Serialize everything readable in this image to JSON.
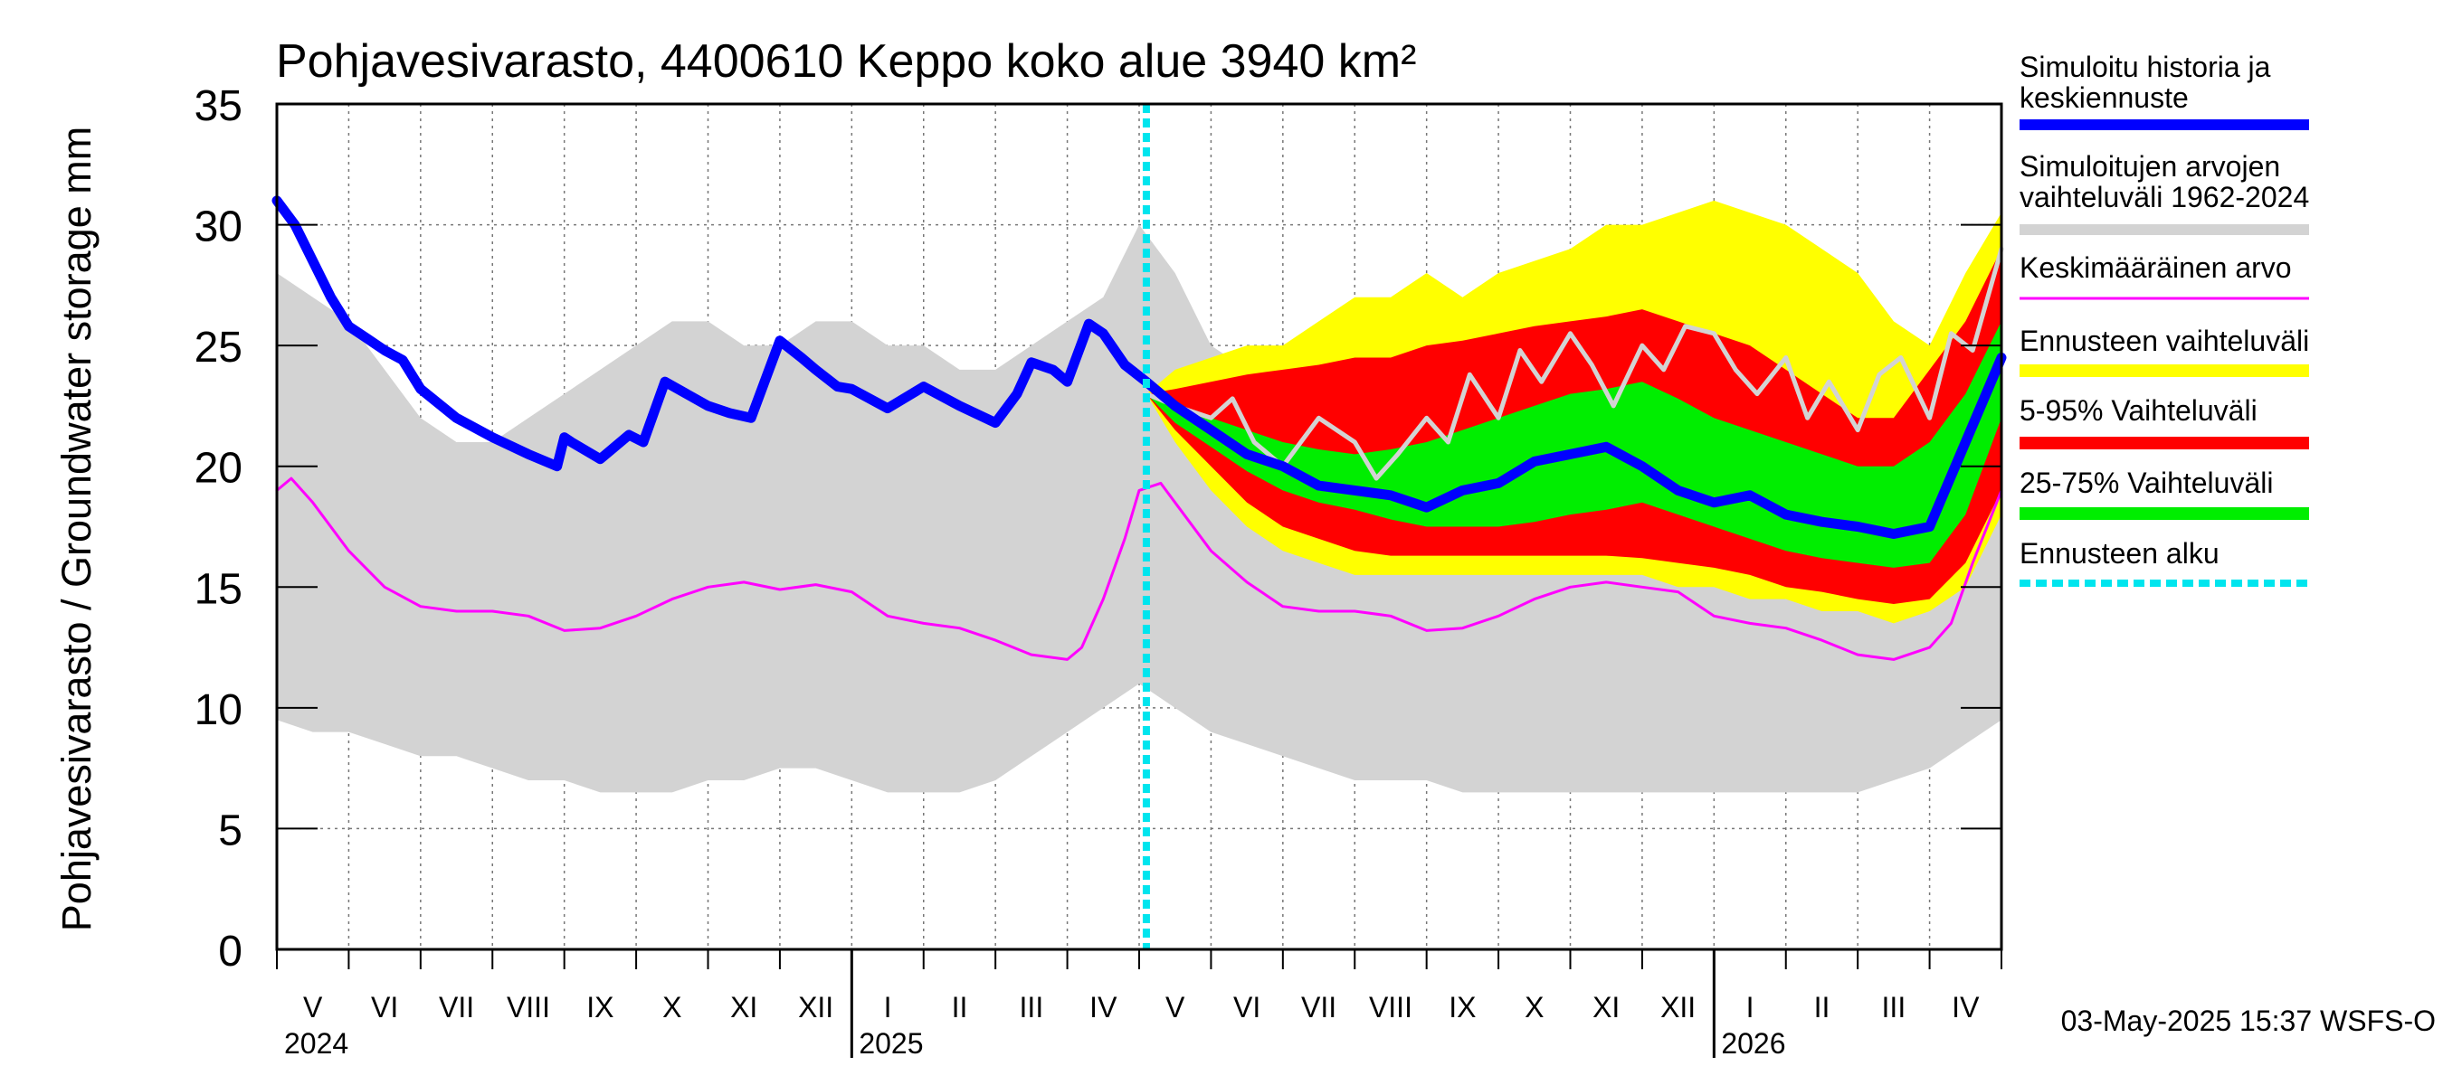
{
  "chart_data": {
    "type": "area",
    "title": "Pohjavesivarasto, 4400610 Keppo koko alue 3940 km²",
    "ylabel": "Pohjavesivarasto / Groundwater storage   mm",
    "ylim": [
      0,
      35
    ],
    "yticks": [
      "0",
      "5",
      "10",
      "15",
      "20",
      "25",
      "30",
      "35"
    ],
    "grid": true,
    "x_unit": "months since 1 May 2024",
    "xlim": [
      0,
      24
    ],
    "forecast_start": 12.1,
    "month_labels": [
      "V",
      "VI",
      "VII",
      "VIII",
      "IX",
      "X",
      "XI",
      "XII",
      "I",
      "II",
      "III",
      "IV",
      "V",
      "VI",
      "VII",
      "VIII",
      "IX",
      "X",
      "XI",
      "XII",
      "I",
      "II",
      "III",
      "IV"
    ],
    "year_labels": [
      {
        "label": "2024",
        "month": 0
      },
      {
        "label": "2025",
        "month": 8
      },
      {
        "label": "2026",
        "month": 20
      }
    ],
    "timestamp": "03-May-2025 15:37 WSFS-O",
    "legend_position": "right",
    "legend": [
      {
        "label": "Simuloitu historia ja keskiennuste",
        "color": "#0000ff"
      },
      {
        "label": "Simuloitujen arvojen vaihteluväli 1962-2024",
        "color": "#d3d3d3"
      },
      {
        "label": "Keskimääräinen arvo",
        "color": "#ff00ff"
      },
      {
        "label": "Ennusteen vaihteluväli",
        "color": "#ffff00"
      },
      {
        "label": "5-95% Vaihteluväli",
        "color": "#ff0000"
      },
      {
        "label": "25-75% Vaihteluväli",
        "color": "#00ee00"
      },
      {
        "label": "Ennusteen alku",
        "color": "#00e5ee"
      }
    ],
    "series": {
      "historical_range": {
        "x": [
          0,
          0.5,
          1,
          1.5,
          2,
          2.5,
          3,
          3.5,
          4,
          4.5,
          5,
          5.5,
          6,
          6.5,
          7,
          7.5,
          8,
          8.5,
          9,
          9.5,
          10,
          10.5,
          11,
          11.5,
          12,
          12.5,
          13,
          13.5,
          14,
          14.5,
          15,
          15.5,
          16,
          16.5,
          17,
          17.5,
          18,
          18.5,
          19,
          19.5,
          20,
          20.5,
          21,
          21.5,
          22,
          22.5,
          23,
          23.5,
          24
        ],
        "upper": [
          28,
          27,
          26,
          24,
          22,
          21,
          21,
          22,
          23,
          24,
          25,
          26,
          26,
          25,
          25,
          26,
          26,
          25,
          25,
          24,
          24,
          25,
          26,
          27,
          30,
          28,
          25,
          24,
          24,
          25,
          25,
          25,
          25,
          25,
          25,
          26,
          26,
          27,
          27,
          26,
          25,
          24,
          23,
          22,
          22,
          23,
          25,
          27,
          28
        ],
        "lower": [
          9.5,
          9,
          9,
          8.5,
          8,
          8,
          7.5,
          7,
          7,
          6.5,
          6.5,
          6.5,
          7,
          7,
          7.5,
          7.5,
          7,
          6.5,
          6.5,
          6.5,
          7,
          8,
          9,
          10,
          11,
          10,
          9,
          8.5,
          8,
          7.5,
          7,
          7,
          7,
          6.5,
          6.5,
          6.5,
          6.5,
          6.5,
          6.5,
          6.5,
          6.5,
          6.5,
          6.5,
          6.5,
          6.5,
          7,
          7.5,
          8.5,
          9.5
        ]
      },
      "forecast_full_range": {
        "x": [
          12.1,
          12.5,
          13,
          13.5,
          14,
          14.5,
          15,
          15.5,
          16,
          16.5,
          17,
          17.5,
          18,
          18.5,
          19,
          19.5,
          20,
          20.5,
          21,
          21.5,
          22,
          22.5,
          23,
          23.5,
          24
        ],
        "upper": [
          23,
          24,
          24.5,
          25,
          25,
          26,
          27,
          27,
          28,
          27,
          28,
          28.5,
          29,
          30,
          30,
          30.5,
          31,
          30.5,
          30,
          29,
          28,
          26,
          25,
          28,
          30.5
        ],
        "lower": [
          23,
          21,
          19,
          17.5,
          16.5,
          16,
          15.5,
          15.5,
          15.5,
          15.5,
          15.5,
          15.5,
          15.5,
          15.5,
          15.5,
          15,
          15,
          14.5,
          14.5,
          14,
          14,
          13.5,
          14,
          15,
          18
        ]
      },
      "forecast_p5_p95": {
        "x": [
          12.1,
          12.5,
          13,
          13.5,
          14,
          14.5,
          15,
          15.5,
          16,
          16.5,
          17,
          17.5,
          18,
          18.5,
          19,
          19.5,
          20,
          20.5,
          21,
          21.5,
          22,
          22.5,
          23,
          23.5,
          24
        ],
        "upper": [
          23,
          23.2,
          23.5,
          23.8,
          24,
          24.2,
          24.5,
          24.5,
          25,
          25.2,
          25.5,
          25.8,
          26,
          26.2,
          26.5,
          26,
          25.5,
          25,
          24,
          23,
          22,
          22,
          24,
          26,
          29
        ],
        "lower": [
          23,
          21.5,
          20,
          18.5,
          17.5,
          17,
          16.5,
          16.3,
          16.3,
          16.3,
          16.3,
          16.3,
          16.3,
          16.3,
          16.2,
          16,
          15.8,
          15.5,
          15,
          14.8,
          14.5,
          14.3,
          14.5,
          16,
          19
        ]
      },
      "forecast_p25_p75": {
        "x": [
          12.1,
          12.5,
          13,
          13.5,
          14,
          14.5,
          15,
          15.5,
          16,
          16.5,
          17,
          17.5,
          18,
          18.5,
          19,
          19.5,
          20,
          20.5,
          21,
          21.5,
          22,
          22.5,
          23,
          23.5,
          24
        ],
        "upper": [
          23,
          22.5,
          22,
          21.5,
          21,
          20.7,
          20.5,
          20.7,
          21,
          21.5,
          22,
          22.5,
          23,
          23.2,
          23.5,
          22.8,
          22,
          21.5,
          21,
          20.5,
          20,
          20,
          21,
          23,
          26
        ],
        "lower": [
          23,
          21.8,
          20.8,
          19.8,
          19,
          18.5,
          18.2,
          17.8,
          17.5,
          17.5,
          17.5,
          17.7,
          18,
          18.2,
          18.5,
          18,
          17.5,
          17,
          16.5,
          16.2,
          16,
          15.8,
          16,
          18,
          22
        ]
      },
      "simulated_mean_forecast": {
        "x": [
          0,
          0.25,
          0.5,
          0.75,
          1,
          1.25,
          1.5,
          1.75,
          2,
          2.5,
          3,
          3.5,
          3.9,
          4,
          4.1,
          4.5,
          4.9,
          5.1,
          5.4,
          5.7,
          6,
          6.3,
          6.6,
          6.8,
          7,
          7.3,
          7.5,
          7.8,
          8,
          8.5,
          9,
          9.5,
          10,
          10.3,
          10.5,
          10.8,
          11,
          11.3,
          11.5,
          11.8,
          12.1,
          12.5,
          13,
          13.5,
          14,
          14.5,
          15,
          15.5,
          16,
          16.5,
          17,
          17.5,
          18,
          18.5,
          19,
          19.5,
          20,
          20.5,
          21,
          21.5,
          22,
          22.5,
          23,
          23.5,
          24
        ],
        "y": [
          31,
          30,
          28.5,
          27,
          25.8,
          25.3,
          24.8,
          24.4,
          23.2,
          22,
          21.2,
          20.5,
          20,
          21.2,
          21,
          20.3,
          21.3,
          21,
          23.5,
          23,
          22.5,
          22.2,
          22,
          23.6,
          25.2,
          24.5,
          24,
          23.3,
          23.2,
          22.4,
          23.3,
          22.5,
          21.8,
          23,
          24.3,
          24,
          23.5,
          25.9,
          25.5,
          24.2,
          23.5,
          22.5,
          21.5,
          20.5,
          20,
          19.2,
          19,
          18.8,
          18.3,
          19,
          19.3,
          20.2,
          20.5,
          20.8,
          20,
          19,
          18.5,
          18.8,
          18,
          17.7,
          17.5,
          17.2,
          17.5,
          21,
          24.5
        ]
      },
      "long_term_mean": {
        "x": [
          0,
          0.2,
          0.5,
          1,
          1.5,
          2,
          2.5,
          3,
          3.5,
          4,
          4.5,
          5,
          5.5,
          6,
          6.5,
          7,
          7.5,
          8,
          8.5,
          9,
          9.5,
          10,
          10.5,
          11,
          11.2,
          11.5,
          11.8,
          12,
          12.3,
          12.5,
          13,
          13.5,
          14,
          14.5,
          15,
          15.5,
          16,
          16.5,
          17,
          17.5,
          18,
          18.5,
          19,
          19.5,
          20,
          20.5,
          21,
          21.5,
          22,
          22.5,
          23,
          23.3,
          23.6,
          24
        ],
        "y": [
          19,
          19.5,
          18.5,
          16.5,
          15,
          14.2,
          14,
          14,
          13.8,
          13.2,
          13.3,
          13.8,
          14.5,
          15,
          15.2,
          14.9,
          15.1,
          14.8,
          13.8,
          13.5,
          13.3,
          12.8,
          12.2,
          12,
          12.5,
          14.5,
          17,
          19,
          19.3,
          18.5,
          16.5,
          15.2,
          14.2,
          14,
          14,
          13.8,
          13.2,
          13.3,
          13.8,
          14.5,
          15,
          15.2,
          15,
          14.8,
          13.8,
          13.5,
          13.3,
          12.8,
          12.2,
          12,
          12.5,
          13.5,
          16,
          19
        ]
      },
      "forecast_median_trace": {
        "x": [
          12.1,
          12.5,
          13,
          13.3,
          13.6,
          14,
          14.5,
          15,
          15.3,
          15.6,
          16,
          16.3,
          16.6,
          17,
          17.3,
          17.6,
          18,
          18.3,
          18.6,
          19,
          19.3,
          19.6,
          20,
          20.3,
          20.6,
          21,
          21.3,
          21.6,
          22,
          22.3,
          22.6,
          23,
          23.3,
          23.6,
          24
        ],
        "y": [
          23,
          22.5,
          22,
          22.8,
          21,
          20,
          22,
          21,
          19.5,
          20.5,
          22,
          21,
          23.8,
          22,
          24.8,
          23.5,
          25.5,
          24.2,
          22.5,
          25,
          24,
          25.8,
          25.5,
          24,
          23,
          24.5,
          22,
          23.5,
          21.5,
          23.8,
          24.5,
          22,
          25.5,
          24.8,
          29
        ]
      }
    }
  }
}
